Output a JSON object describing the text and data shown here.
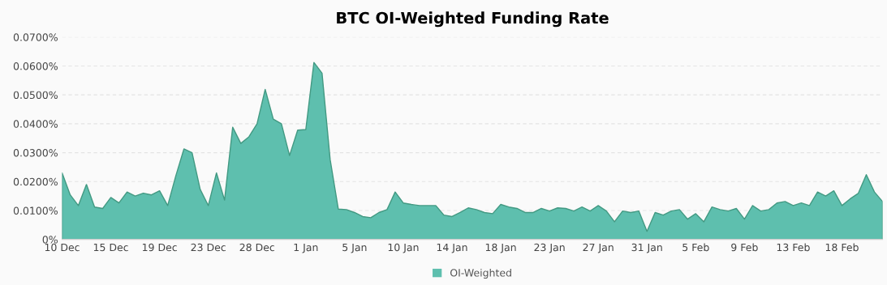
{
  "chart_data": {
    "type": "area",
    "title": "BTC OI-Weighted Funding Rate",
    "categories": [
      "10 Dec",
      null,
      null,
      null,
      null,
      null,
      "15 Dec",
      null,
      null,
      null,
      null,
      null,
      "19 Dec",
      null,
      null,
      null,
      null,
      null,
      "23 Dec",
      null,
      null,
      null,
      null,
      null,
      "28 Dec",
      null,
      null,
      null,
      null,
      null,
      "1 Jan",
      null,
      null,
      null,
      null,
      null,
      "5 Jan",
      null,
      null,
      null,
      null,
      null,
      "10 Jan",
      null,
      null,
      null,
      null,
      null,
      "14 Jan",
      null,
      null,
      null,
      null,
      null,
      "18 Jan",
      null,
      null,
      null,
      null,
      null,
      "23 Jan",
      null,
      null,
      null,
      null,
      null,
      "27 Jan",
      null,
      null,
      null,
      null,
      null,
      "31 Jan",
      null,
      null,
      null,
      null,
      null,
      "5 Feb",
      null,
      null,
      null,
      null,
      null,
      "9 Feb",
      null,
      null,
      null,
      null,
      null,
      "13 Feb",
      null,
      null,
      null,
      null,
      null,
      "18 Feb",
      null,
      null,
      null,
      null,
      null
    ],
    "series": [
      {
        "name": "OI-Weighted",
        "color": "#5ebfae",
        "values": [
          0.023,
          0.0154,
          0.0117,
          0.019,
          0.0112,
          0.0107,
          0.0145,
          0.0126,
          0.0164,
          0.015,
          0.016,
          0.0154,
          0.0168,
          0.0117,
          0.022,
          0.0313,
          0.03,
          0.0173,
          0.0117,
          0.023,
          0.0136,
          0.0388,
          0.0332,
          0.0355,
          0.04,
          0.0519,
          0.0416,
          0.04,
          0.029,
          0.0378,
          0.038,
          0.0612,
          0.0575,
          0.0276,
          0.0105,
          0.0103,
          0.0093,
          0.0079,
          0.0075,
          0.0093,
          0.0103,
          0.0164,
          0.0126,
          0.0121,
          0.0117,
          0.0117,
          0.0117,
          0.0084,
          0.0079,
          0.0093,
          0.0109,
          0.0103,
          0.0093,
          0.0089,
          0.0121,
          0.0112,
          0.0107,
          0.0093,
          0.0093,
          0.0107,
          0.0098,
          0.0109,
          0.0107,
          0.0098,
          0.0112,
          0.0098,
          0.0117,
          0.0098,
          0.0061,
          0.0098,
          0.0093,
          0.0098,
          0.0028,
          0.0093,
          0.0084,
          0.0098,
          0.0103,
          0.007,
          0.0089,
          0.0061,
          0.0112,
          0.0103,
          0.0098,
          0.0107,
          0.007,
          0.0117,
          0.0098,
          0.0103,
          0.0126,
          0.0131,
          0.0117,
          0.0126,
          0.0117,
          0.0164,
          0.015,
          0.0168,
          0.0117,
          0.014,
          0.0159,
          0.0224,
          0.0164,
          0.0131
        ]
      }
    ],
    "ylim": [
      0,
      0.07
    ],
    "yticks": [
      {
        "value": 0,
        "label": "0%"
      },
      {
        "value": 0.01,
        "label": "0.0100%"
      },
      {
        "value": 0.02,
        "label": "0.0200%"
      },
      {
        "value": 0.03,
        "label": "0.0300%"
      },
      {
        "value": 0.04,
        "label": "0.0400%"
      },
      {
        "value": 0.05,
        "label": "0.0500%"
      },
      {
        "value": 0.06,
        "label": "0.0600%"
      },
      {
        "value": 0.07,
        "label": "0.0700%"
      }
    ],
    "grid": "y",
    "legend": "bottom"
  }
}
